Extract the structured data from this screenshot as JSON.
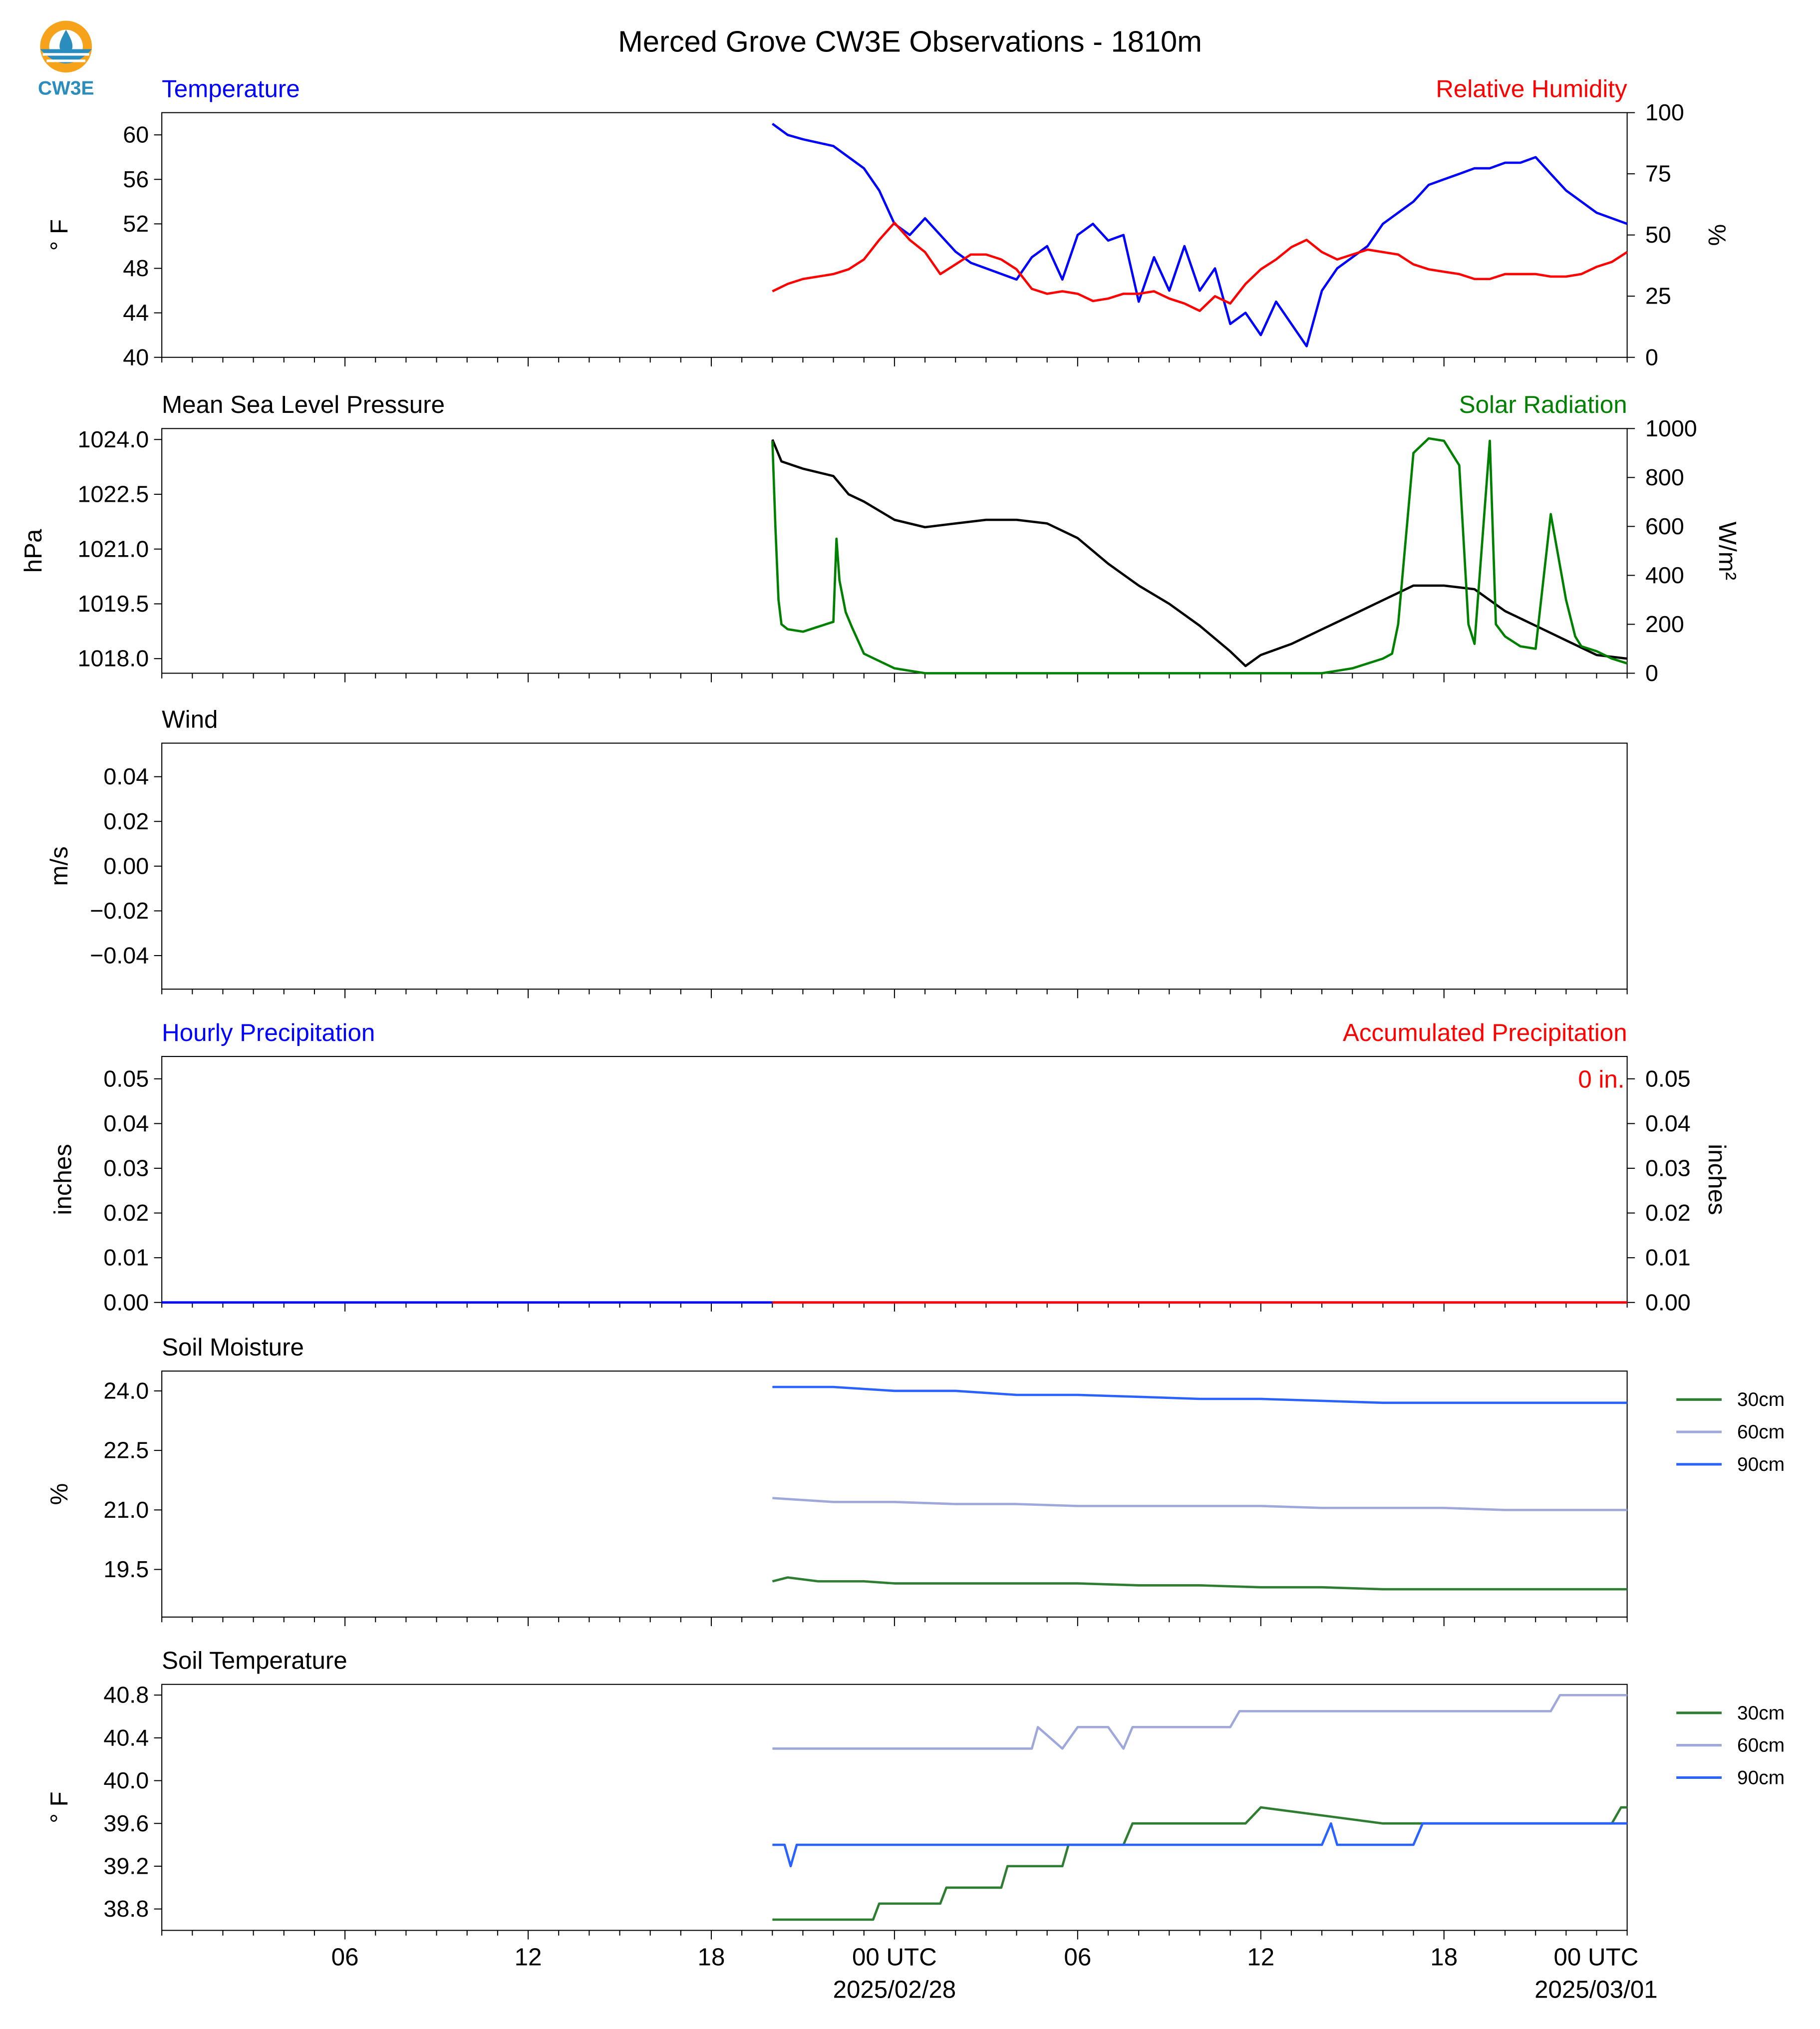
{
  "title": "Merced Grove CW3E Observations - 1810m",
  "logo": {
    "text": "CW3E",
    "icon": "cw3e-logo-icon"
  },
  "colors": {
    "blue": "#0000ff",
    "red": "#ff0000",
    "green": "#008000",
    "black": "#000000",
    "soil30": "#2e7d32",
    "soil60": "#9fa8da",
    "soil90": "#2962ff"
  },
  "time_axis": {
    "ticks": [
      "06",
      "12",
      "18",
      "00 UTC",
      "06",
      "12",
      "18",
      "00 UTC"
    ],
    "dates": [
      "2025/02/28",
      "2025/03/01"
    ],
    "range_hours": [
      0,
      48
    ]
  },
  "chart_data": [
    {
      "type": "line",
      "title_left": "Temperature",
      "title_right": "Relative Humidity",
      "ylabel_left": "° F",
      "ylabel_right": "%",
      "ylim_left": [
        40,
        62
      ],
      "ylim_right": [
        0,
        100
      ],
      "yticks_left": [
        "40",
        "44",
        "48",
        "52",
        "56",
        "60"
      ],
      "yticks_right": [
        "0",
        "25",
        "50",
        "75",
        "100"
      ],
      "series": [
        {
          "name": "Temperature",
          "axis": "left",
          "color": "#0000ff",
          "x": [
            20,
            20.5,
            21,
            22,
            22.5,
            23,
            23.5,
            24,
            24.5,
            25,
            25.5,
            26,
            26.5,
            27,
            27.5,
            28,
            28.5,
            29,
            29.5,
            30,
            30.5,
            31,
            31.5,
            32,
            32.5,
            33,
            33.5,
            34,
            34.5,
            35,
            35.5,
            36,
            36.5,
            37,
            37.5,
            38,
            38.5,
            39,
            39.5,
            40,
            40.5,
            41,
            41.5,
            42,
            42.5,
            43,
            43.5,
            44,
            44.5,
            45,
            45.5,
            46,
            46.5,
            47,
            47.5,
            48
          ],
          "y": [
            61,
            60,
            59.6,
            59,
            58,
            57,
            55,
            52,
            51,
            52.5,
            51,
            49.5,
            48.5,
            48,
            47.5,
            47,
            49,
            50,
            47,
            51,
            52,
            50.5,
            51,
            45,
            49,
            46,
            50,
            46,
            48,
            43,
            44,
            42,
            45,
            43,
            41,
            46,
            48,
            49,
            50,
            52,
            53,
            54,
            55.5,
            56,
            56.5,
            57,
            57,
            57.5,
            57.5,
            58,
            56.5,
            55,
            54,
            53,
            52.5,
            52
          ]
        },
        {
          "name": "Relative Humidity",
          "axis": "right",
          "color": "#ff0000",
          "x": [
            20,
            20.5,
            21,
            22,
            22.5,
            23,
            23.5,
            24,
            24.5,
            25,
            25.5,
            26,
            26.5,
            27,
            27.5,
            28,
            28.5,
            29,
            29.5,
            30,
            30.5,
            31,
            31.5,
            32,
            32.5,
            33,
            33.5,
            34,
            34.5,
            35,
            35.5,
            36,
            36.5,
            37,
            37.5,
            38,
            38.5,
            39,
            39.5,
            40,
            40.5,
            41,
            41.5,
            42,
            42.5,
            43,
            43.5,
            44,
            44.5,
            45,
            45.5,
            46,
            46.5,
            47,
            47.5,
            48
          ],
          "y": [
            27,
            30,
            32,
            34,
            36,
            40,
            48,
            55,
            48,
            43,
            34,
            38,
            42,
            42,
            40,
            36,
            28,
            26,
            27,
            26,
            23,
            24,
            26,
            26,
            27,
            24,
            22,
            19,
            25,
            22,
            30,
            36,
            40,
            45,
            48,
            43,
            40,
            42,
            44,
            43,
            42,
            38,
            36,
            35,
            34,
            32,
            32,
            34,
            34,
            34,
            33,
            33,
            34,
            37,
            39,
            43
          ]
        }
      ]
    },
    {
      "type": "line",
      "title_left": "Mean Sea Level Pressure",
      "title_right": "Solar Radiation",
      "ylabel_left": "hPa",
      "ylabel_right": "W/m²",
      "ylim_left": [
        1017.6,
        1024.3
      ],
      "ylim_right": [
        0,
        1000
      ],
      "yticks_left": [
        "1018.0",
        "1019.5",
        "1021.0",
        "1022.5",
        "1024.0"
      ],
      "yticks_right": [
        "0",
        "200",
        "400",
        "600",
        "800",
        "1000"
      ],
      "series": [
        {
          "name": "Mean Sea Level Pressure",
          "axis": "left",
          "color": "#000000",
          "x": [
            20,
            20.3,
            21,
            22,
            22.5,
            23,
            24,
            25,
            26,
            27,
            28,
            29,
            30,
            31,
            32,
            33,
            34,
            35,
            35.5,
            36,
            37,
            38,
            39,
            40,
            41,
            42,
            43,
            44,
            45,
            46,
            47,
            48
          ],
          "y": [
            1024.0,
            1023.4,
            1023.2,
            1023.0,
            1022.5,
            1022.3,
            1021.8,
            1021.6,
            1021.7,
            1021.8,
            1021.8,
            1021.7,
            1021.3,
            1020.6,
            1020.0,
            1019.5,
            1018.9,
            1018.2,
            1017.8,
            1018.1,
            1018.4,
            1018.8,
            1019.2,
            1019.6,
            1020.0,
            1020.0,
            1019.9,
            1019.3,
            1018.9,
            1018.5,
            1018.1,
            1018.0
          ]
        },
        {
          "name": "Solar Radiation",
          "axis": "right",
          "color": "#008000",
          "x": [
            20,
            20.1,
            20.2,
            20.3,
            20.5,
            21,
            21.5,
            22,
            22.1,
            22.2,
            22.4,
            22.6,
            23,
            24,
            25,
            26,
            27,
            28,
            29,
            30,
            31,
            32,
            33,
            34,
            35,
            36,
            37,
            38,
            39,
            40,
            40.3,
            40.5,
            41,
            41.5,
            42,
            42.5,
            42.8,
            43,
            43.5,
            43.7,
            44,
            44.5,
            45,
            45.5,
            46,
            46.3,
            46.5,
            47,
            47.5,
            48
          ],
          "y": [
            950,
            600,
            300,
            200,
            180,
            170,
            190,
            210,
            550,
            380,
            250,
            190,
            80,
            20,
            0,
            0,
            0,
            0,
            0,
            0,
            0,
            0,
            0,
            0,
            0,
            0,
            0,
            0,
            20,
            60,
            80,
            200,
            900,
            960,
            950,
            850,
            200,
            120,
            950,
            200,
            150,
            110,
            100,
            650,
            300,
            150,
            110,
            90,
            60,
            40
          ]
        }
      ]
    },
    {
      "type": "line",
      "title_left": "Wind",
      "ylabel_left": "m/s",
      "ylim_left": [
        -0.055,
        0.055
      ],
      "yticks_left": [
        "−0.04",
        "−0.02",
        "0.00",
        "0.02",
        "0.04"
      ],
      "series": []
    },
    {
      "type": "line",
      "title_left": "Hourly Precipitation",
      "title_right": "Accumulated Precipitation",
      "ylabel_left": "inches",
      "ylabel_right": "inches",
      "ylim_left": [
        0,
        0.055
      ],
      "ylim_right": [
        0,
        0.055
      ],
      "yticks_left": [
        "0.00",
        "0.01",
        "0.02",
        "0.03",
        "0.04",
        "0.05"
      ],
      "yticks_right": [
        "0.00",
        "0.01",
        "0.02",
        "0.03",
        "0.04",
        "0.05"
      ],
      "annotation": "0 in.",
      "series": [
        {
          "name": "Hourly Precipitation",
          "axis": "left",
          "color": "#0000ff",
          "x": [
            0,
            48
          ],
          "y": [
            0,
            0
          ]
        },
        {
          "name": "Accumulated Precipitation",
          "axis": "right",
          "color": "#ff0000",
          "x": [
            20,
            48
          ],
          "y": [
            0,
            0
          ]
        }
      ]
    },
    {
      "type": "line",
      "title_left": "Soil Moisture",
      "ylabel_left": "%",
      "ylim_left": [
        18.3,
        24.5
      ],
      "yticks_left": [
        "19.5",
        "21.0",
        "22.5",
        "24.0"
      ],
      "legend": [
        "30cm",
        "60cm",
        "90cm"
      ],
      "legend_position": "right",
      "series": [
        {
          "name": "30cm",
          "axis": "left",
          "color": "#2e7d32",
          "x": [
            20,
            20.5,
            21,
            21.5,
            22,
            23,
            24,
            26,
            28,
            30,
            32,
            34,
            36,
            38,
            40,
            42,
            44,
            46,
            48
          ],
          "y": [
            19.2,
            19.3,
            19.25,
            19.2,
            19.2,
            19.2,
            19.15,
            19.15,
            19.15,
            19.15,
            19.1,
            19.1,
            19.05,
            19.05,
            19.0,
            19.0,
            19.0,
            19.0,
            19.0
          ]
        },
        {
          "name": "60cm",
          "axis": "left",
          "color": "#9fa8da",
          "x": [
            20,
            22,
            24,
            26,
            28,
            30,
            32,
            34,
            36,
            38,
            40,
            42,
            44,
            46,
            48
          ],
          "y": [
            21.3,
            21.2,
            21.2,
            21.15,
            21.15,
            21.1,
            21.1,
            21.1,
            21.1,
            21.05,
            21.05,
            21.05,
            21.0,
            21.0,
            21.0
          ]
        },
        {
          "name": "90cm",
          "axis": "left",
          "color": "#2962ff",
          "x": [
            20,
            22,
            24,
            26,
            28,
            30,
            32,
            34,
            36,
            38,
            40,
            42,
            44,
            46,
            48
          ],
          "y": [
            24.1,
            24.1,
            24.0,
            24.0,
            23.9,
            23.9,
            23.85,
            23.8,
            23.8,
            23.75,
            23.7,
            23.7,
            23.7,
            23.7,
            23.7
          ]
        }
      ]
    },
    {
      "type": "line",
      "title_left": "Soil Temperature",
      "ylabel_left": "° F",
      "ylim_left": [
        38.6,
        40.9
      ],
      "yticks_left": [
        "38.8",
        "39.2",
        "39.6",
        "40.0",
        "40.4",
        "40.8"
      ],
      "legend": [
        "30cm",
        "60cm",
        "90cm"
      ],
      "legend_position": "right",
      "series": [
        {
          "name": "30cm",
          "axis": "left",
          "color": "#2e7d32",
          "x": [
            20,
            23.3,
            23.5,
            25.5,
            25.7,
            27.5,
            27.7,
            29.5,
            29.7,
            31.5,
            31.8,
            35.5,
            36,
            40,
            47.5,
            47.8,
            48
          ],
          "y": [
            38.7,
            38.7,
            38.85,
            38.85,
            39.0,
            39.0,
            39.2,
            39.2,
            39.4,
            39.4,
            39.6,
            39.6,
            39.75,
            39.6,
            39.6,
            39.75,
            39.75
          ]
        },
        {
          "name": "60cm",
          "axis": "left",
          "color": "#9fa8da",
          "x": [
            20,
            28.5,
            28.7,
            29.5,
            30,
            31,
            31.5,
            31.8,
            35,
            35.3,
            36,
            45.5,
            45.8,
            48
          ],
          "y": [
            40.3,
            40.3,
            40.5,
            40.3,
            40.5,
            40.5,
            40.3,
            40.5,
            40.5,
            40.65,
            40.65,
            40.65,
            40.8,
            40.8
          ]
        },
        {
          "name": "90cm",
          "axis": "left",
          "color": "#2962ff",
          "x": [
            20,
            20.4,
            20.6,
            20.8,
            38,
            38.3,
            38.5,
            41,
            41.3,
            48
          ],
          "y": [
            39.4,
            39.4,
            39.2,
            39.4,
            39.4,
            39.6,
            39.4,
            39.4,
            39.6,
            39.6
          ]
        }
      ]
    }
  ]
}
